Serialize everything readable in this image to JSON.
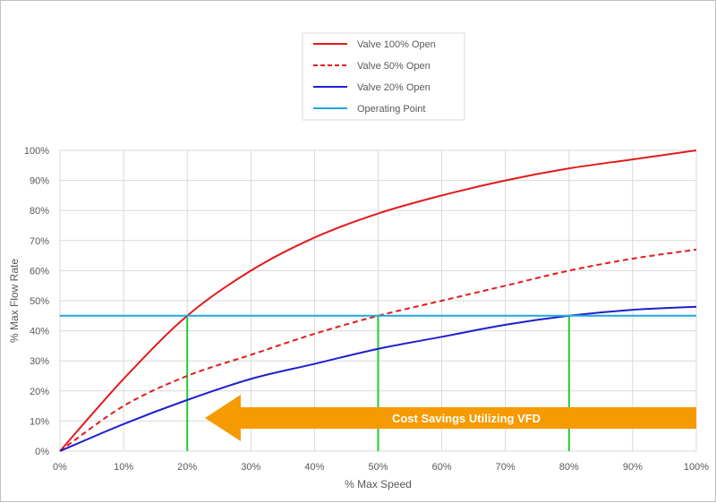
{
  "chart_data": {
    "type": "line",
    "xlabel": "% Max Speed",
    "ylabel": "% Max Flow Rate",
    "xlim": [
      0,
      100
    ],
    "ylim": [
      0,
      100
    ],
    "grid": true,
    "legend_position": "top-center",
    "x_ticks": [
      "0%",
      "10%",
      "20%",
      "30%",
      "40%",
      "50%",
      "60%",
      "70%",
      "80%",
      "90%",
      "100%"
    ],
    "y_ticks": [
      "0%",
      "10%",
      "20%",
      "30%",
      "40%",
      "50%",
      "60%",
      "70%",
      "80%",
      "90%",
      "100%"
    ],
    "x": [
      0,
      10,
      20,
      30,
      40,
      50,
      60,
      70,
      80,
      90,
      100
    ],
    "series": [
      {
        "name": "Valve 100% Open",
        "style": "solid",
        "color": "#e31a1c",
        "values": [
          0,
          24,
          45,
          60,
          71,
          79,
          85,
          90,
          94,
          97,
          100
        ]
      },
      {
        "name": "Valve 50% Open",
        "style": "dashed",
        "color": "#e31a1c",
        "values": [
          0,
          15,
          25,
          32,
          39,
          45,
          50,
          55,
          60,
          64,
          67
        ]
      },
      {
        "name": "Valve 20% Open",
        "style": "solid",
        "color": "#1f1fcf",
        "values": [
          0,
          9,
          17,
          24,
          29,
          34,
          38,
          42,
          45,
          47,
          48
        ]
      },
      {
        "name": "Operating Point",
        "style": "solid",
        "color": "#1fa8e0",
        "values": [
          45,
          45,
          45,
          45,
          45,
          45,
          45,
          45,
          45,
          45,
          45
        ]
      }
    ],
    "intersection_markers": {
      "color": "#22cc33",
      "x": [
        20,
        50,
        80
      ]
    },
    "annotation": {
      "text": "Cost Savings Utilizing VFD",
      "color": "#f59a00",
      "direction": "left"
    }
  }
}
